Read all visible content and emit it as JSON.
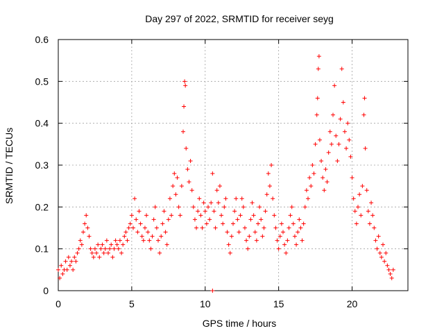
{
  "chart_data": {
    "type": "scatter",
    "title": "Day 297 of 2022, SRMTID for receiver seyg",
    "xlabel": "GPS time / hours",
    "ylabel": "SRMTID / TECUs",
    "xlim": [
      0,
      23.8
    ],
    "ylim": [
      0,
      0.6
    ],
    "x_ticks": [
      0,
      5,
      10,
      15,
      20
    ],
    "x_tick_labels": [
      "0",
      "5",
      "10",
      "15",
      "20"
    ],
    "y_ticks": [
      0,
      0.1,
      0.2,
      0.3,
      0.4,
      0.5,
      0.6
    ],
    "y_tick_labels": [
      "0",
      "0.1",
      "0.2",
      "0.3",
      "0.4",
      "0.5",
      "0.6"
    ],
    "grid": true,
    "marker": "+",
    "color": "#ff0000",
    "series": [
      {
        "name": "SRMTID",
        "points": [
          [
            0.0,
            0.05
          ],
          [
            0.1,
            0.03
          ],
          [
            0.2,
            0.06
          ],
          [
            0.3,
            0.04
          ],
          [
            0.4,
            0.05
          ],
          [
            0.5,
            0.07
          ],
          [
            0.6,
            0.05
          ],
          [
            0.7,
            0.08
          ],
          [
            0.8,
            0.06
          ],
          [
            0.9,
            0.07
          ],
          [
            1.0,
            0.05
          ],
          [
            1.1,
            0.08
          ],
          [
            1.2,
            0.07
          ],
          [
            1.3,
            0.09
          ],
          [
            1.4,
            0.1
          ],
          [
            1.5,
            0.12
          ],
          [
            1.6,
            0.11
          ],
          [
            1.7,
            0.14
          ],
          [
            1.8,
            0.16
          ],
          [
            1.9,
            0.18
          ],
          [
            2.0,
            0.15
          ],
          [
            2.1,
            0.13
          ],
          [
            2.2,
            0.1
          ],
          [
            2.3,
            0.09
          ],
          [
            2.4,
            0.08
          ],
          [
            2.5,
            0.1
          ],
          [
            2.6,
            0.09
          ],
          [
            2.7,
            0.11
          ],
          [
            2.8,
            0.08
          ],
          [
            2.9,
            0.1
          ],
          [
            3.0,
            0.11
          ],
          [
            3.1,
            0.09
          ],
          [
            3.2,
            0.1
          ],
          [
            3.3,
            0.12
          ],
          [
            3.4,
            0.09
          ],
          [
            3.5,
            0.1
          ],
          [
            3.6,
            0.11
          ],
          [
            3.7,
            0.08
          ],
          [
            3.8,
            0.1
          ],
          [
            3.9,
            0.12
          ],
          [
            4.0,
            0.11
          ],
          [
            4.1,
            0.1
          ],
          [
            4.2,
            0.12
          ],
          [
            4.3,
            0.09
          ],
          [
            4.4,
            0.11
          ],
          [
            4.5,
            0.13
          ],
          [
            4.6,
            0.14
          ],
          [
            4.7,
            0.12
          ],
          [
            4.8,
            0.15
          ],
          [
            4.9,
            0.16
          ],
          [
            5.0,
            0.18
          ],
          [
            5.1,
            0.15
          ],
          [
            5.2,
            0.22
          ],
          [
            5.3,
            0.17
          ],
          [
            5.4,
            0.14
          ],
          [
            5.5,
            0.19
          ],
          [
            5.6,
            0.16
          ],
          [
            5.7,
            0.13
          ],
          [
            5.8,
            0.12
          ],
          [
            5.9,
            0.15
          ],
          [
            6.0,
            0.18
          ],
          [
            6.1,
            0.14
          ],
          [
            6.2,
            0.12
          ],
          [
            6.3,
            0.1
          ],
          [
            6.4,
            0.13
          ],
          [
            6.5,
            0.17
          ],
          [
            6.6,
            0.2
          ],
          [
            6.7,
            0.15
          ],
          [
            6.8,
            0.12
          ],
          [
            6.9,
            0.09
          ],
          [
            7.0,
            0.13
          ],
          [
            7.1,
            0.16
          ],
          [
            7.2,
            0.19
          ],
          [
            7.3,
            0.14
          ],
          [
            7.4,
            0.11
          ],
          [
            7.5,
            0.17
          ],
          [
            7.6,
            0.22
          ],
          [
            7.7,
            0.18
          ],
          [
            7.8,
            0.25
          ],
          [
            7.9,
            0.28
          ],
          [
            8.0,
            0.23
          ],
          [
            8.1,
            0.27
          ],
          [
            8.2,
            0.2
          ],
          [
            8.3,
            0.18
          ],
          [
            8.4,
            0.25
          ],
          [
            8.5,
            0.38
          ],
          [
            8.55,
            0.44
          ],
          [
            8.6,
            0.5
          ],
          [
            8.65,
            0.49
          ],
          [
            8.7,
            0.34
          ],
          [
            8.8,
            0.29
          ],
          [
            8.9,
            0.26
          ],
          [
            9.0,
            0.31
          ],
          [
            9.1,
            0.24
          ],
          [
            9.2,
            0.2
          ],
          [
            9.3,
            0.17
          ],
          [
            9.4,
            0.15
          ],
          [
            9.5,
            0.19
          ],
          [
            9.6,
            0.22
          ],
          [
            9.7,
            0.18
          ],
          [
            9.8,
            0.15
          ],
          [
            9.9,
            0.21
          ],
          [
            10.0,
            0.19
          ],
          [
            10.1,
            0.16
          ],
          [
            10.2,
            0.2
          ],
          [
            10.3,
            0.17
          ],
          [
            10.4,
            0.21
          ],
          [
            10.5,
            0.28
          ],
          [
            10.6,
            0.19
          ],
          [
            10.7,
            0.15
          ],
          [
            10.8,
            0.24
          ],
          [
            10.9,
            0.21
          ],
          [
            11.0,
            0.25
          ],
          [
            11.1,
            0.18
          ],
          [
            11.2,
            0.16
          ],
          [
            11.3,
            0.2
          ],
          [
            11.4,
            0.22
          ],
          [
            11.5,
            0.14
          ],
          [
            11.6,
            0.11
          ],
          [
            11.7,
            0.09
          ],
          [
            11.8,
            0.13
          ],
          [
            11.9,
            0.16
          ],
          [
            12.0,
            0.19
          ],
          [
            12.1,
            0.22
          ],
          [
            12.2,
            0.17
          ],
          [
            12.3,
            0.14
          ],
          [
            12.4,
            0.18
          ],
          [
            12.5,
            0.22
          ],
          [
            12.6,
            0.2
          ],
          [
            12.7,
            0.15
          ],
          [
            12.8,
            0.12
          ],
          [
            12.9,
            0.1
          ],
          [
            13.0,
            0.13
          ],
          [
            13.1,
            0.17
          ],
          [
            13.2,
            0.21
          ],
          [
            13.3,
            0.18
          ],
          [
            13.4,
            0.14
          ],
          [
            13.5,
            0.12
          ],
          [
            13.6,
            0.16
          ],
          [
            13.7,
            0.2
          ],
          [
            13.8,
            0.17
          ],
          [
            13.9,
            0.13
          ],
          [
            14.0,
            0.15
          ],
          [
            14.1,
            0.19
          ],
          [
            14.2,
            0.23
          ],
          [
            14.3,
            0.28
          ],
          [
            14.4,
            0.25
          ],
          [
            14.5,
            0.3
          ],
          [
            14.6,
            0.22
          ],
          [
            14.7,
            0.18
          ],
          [
            14.8,
            0.15
          ],
          [
            14.9,
            0.12
          ],
          [
            15.0,
            0.1
          ],
          [
            15.1,
            0.13
          ],
          [
            15.2,
            0.16
          ],
          [
            15.3,
            0.14
          ],
          [
            15.4,
            0.11
          ],
          [
            15.5,
            0.09
          ],
          [
            15.6,
            0.12
          ],
          [
            15.7,
            0.15
          ],
          [
            15.8,
            0.18
          ],
          [
            15.9,
            0.2
          ],
          [
            16.0,
            0.16
          ],
          [
            16.1,
            0.13
          ],
          [
            16.2,
            0.11
          ],
          [
            16.3,
            0.14
          ],
          [
            16.4,
            0.17
          ],
          [
            16.5,
            0.15
          ],
          [
            16.6,
            0.12
          ],
          [
            16.7,
            0.16
          ],
          [
            16.8,
            0.2
          ],
          [
            16.9,
            0.24
          ],
          [
            17.0,
            0.22
          ],
          [
            17.1,
            0.27
          ],
          [
            17.2,
            0.25
          ],
          [
            17.3,
            0.3
          ],
          [
            17.4,
            0.28
          ],
          [
            17.5,
            0.35
          ],
          [
            17.6,
            0.42
          ],
          [
            17.65,
            0.46
          ],
          [
            17.7,
            0.53
          ],
          [
            17.75,
            0.56
          ],
          [
            17.8,
            0.36
          ],
          [
            17.9,
            0.31
          ],
          [
            18.0,
            0.27
          ],
          [
            18.1,
            0.24
          ],
          [
            18.2,
            0.29
          ],
          [
            18.3,
            0.26
          ],
          [
            18.4,
            0.33
          ],
          [
            18.5,
            0.38
          ],
          [
            18.6,
            0.35
          ],
          [
            18.7,
            0.42
          ],
          [
            18.8,
            0.49
          ],
          [
            18.9,
            0.37
          ],
          [
            19.0,
            0.31
          ],
          [
            19.1,
            0.35
          ],
          [
            19.2,
            0.41
          ],
          [
            19.3,
            0.53
          ],
          [
            19.4,
            0.45
          ],
          [
            19.5,
            0.38
          ],
          [
            19.6,
            0.34
          ],
          [
            19.7,
            0.4
          ],
          [
            19.8,
            0.36
          ],
          [
            19.9,
            0.32
          ],
          [
            20.0,
            0.27
          ],
          [
            20.1,
            0.22
          ],
          [
            20.2,
            0.19
          ],
          [
            20.3,
            0.16
          ],
          [
            20.4,
            0.2
          ],
          [
            20.5,
            0.23
          ],
          [
            20.6,
            0.18
          ],
          [
            20.7,
            0.25
          ],
          [
            20.8,
            0.42
          ],
          [
            20.85,
            0.46
          ],
          [
            20.9,
            0.34
          ],
          [
            21.0,
            0.24
          ],
          [
            21.1,
            0.19
          ],
          [
            21.2,
            0.16
          ],
          [
            21.3,
            0.21
          ],
          [
            21.4,
            0.18
          ],
          [
            21.5,
            0.15
          ],
          [
            21.6,
            0.12
          ],
          [
            21.7,
            0.1
          ],
          [
            21.8,
            0.13
          ],
          [
            21.9,
            0.09
          ],
          [
            22.0,
            0.08
          ],
          [
            22.1,
            0.11
          ],
          [
            22.2,
            0.07
          ],
          [
            22.3,
            0.09
          ],
          [
            22.4,
            0.06
          ],
          [
            22.5,
            0.05
          ],
          [
            22.6,
            0.04
          ],
          [
            22.7,
            0.03
          ],
          [
            22.8,
            0.05
          ],
          [
            10.5,
            0.0
          ]
        ]
      }
    ]
  }
}
